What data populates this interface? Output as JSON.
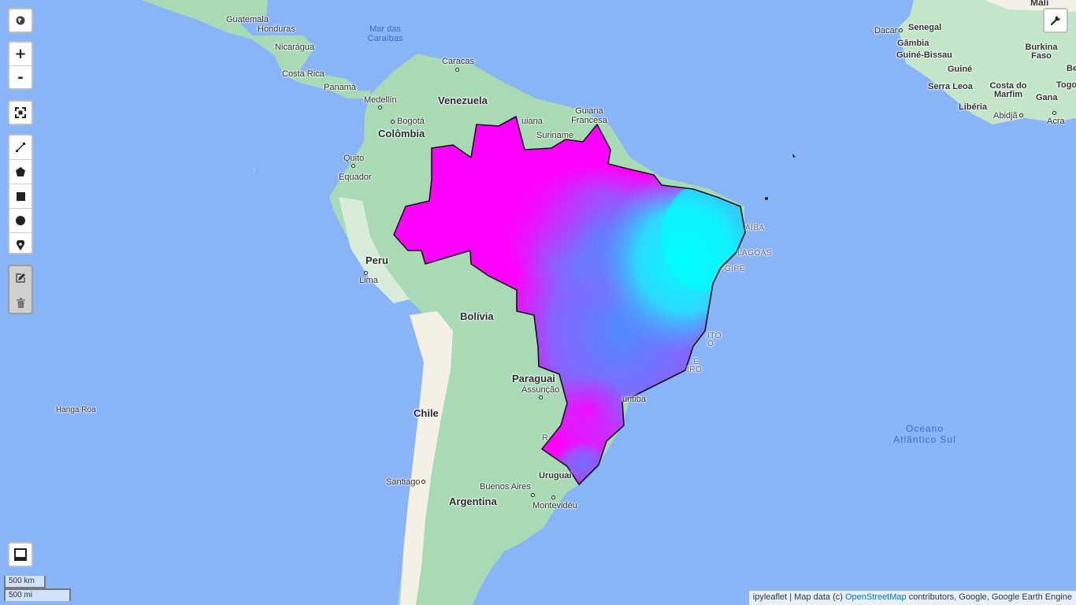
{
  "labels": {
    "guatemala": "Guatemala",
    "honduras": "Honduras",
    "nicaragua": "Nicarágua",
    "costa_rica": "Costa Rica",
    "panama": "Panamá",
    "mar_caraibas": "Mar das Caraíbas",
    "caracas": "Caracas",
    "venezuela": "Venezuela",
    "medellin": "Medellín",
    "bogota": "Bogotá",
    "colombia": "Colômbia",
    "guiana": "uiana",
    "guiana_francesa": "Guiana Francesa",
    "suriname": "Suriname",
    "quito": "Quito",
    "equador": "Equador",
    "peru": "Peru",
    "lima": "Lima",
    "bolivia": "Bolívia",
    "paraguai": "Paraguai",
    "assuncao": "Assunção",
    "chile": "Chile",
    "hanga_roa": "Hanga Roa",
    "santiago": "Santiago",
    "buenos_aires": "Buenos Aires",
    "argentina": "Argentina",
    "uruguai": "Uruguai",
    "montevideu": "Montevidéu",
    "curitiba": "uritiba",
    "oceano": "Oceano Atlântico Sul",
    "dacar": "Dacar",
    "senegal": "Senegal",
    "gambia": "Gâmbia",
    "guine_bissau": "Guiné-Bissau",
    "guine": "Guiné",
    "serra_leoa": "Serra Leoa",
    "liberia": "Libéria",
    "costa_marfim": "Costa do Marfim",
    "gana": "Gana",
    "abidja": "Abidjã",
    "acra": "Acra",
    "burkina": "Burkina Faso",
    "mali": "Mali",
    "togo": "Togo",
    "be": "Be",
    "paraiba": "AÍBA",
    "alagoas": "LAGOAS",
    "sergipe": "GIPE",
    "esp_santo": "ITO",
    "esp_santo2": "O",
    "rio1": "E",
    "rio2": "IRO",
    "r": "R"
  },
  "controls": {
    "globe_icon": "globe-icon",
    "zoom_in": "+",
    "zoom_out": "-",
    "fullscreen_icon": "fullscreen-icon",
    "draw_tools": [
      "polyline-icon",
      "polygon-icon",
      "rectangle-icon",
      "circle-icon",
      "marker-icon"
    ],
    "edit_tools": [
      "edit-icon",
      "trash-icon"
    ],
    "layers_icon": "layers-icon",
    "wrench_icon": "wrench-icon"
  },
  "scale": {
    "km": "500 km",
    "mi": "500 mi"
  },
  "attribution": {
    "prefix": "ipyleaflet | Map data (c) ",
    "link": "OpenStreetMap",
    "suffix": " contributors, Google, Google Earth Engine"
  },
  "colors": {
    "ocean": "#8ab4f8",
    "land": "#a8dab5",
    "andes": "#f5f0e6",
    "africa": "#c3e6c8",
    "magenta": "#ff00ff",
    "cyan": "#00ffff",
    "blue": "#4f8cff"
  }
}
